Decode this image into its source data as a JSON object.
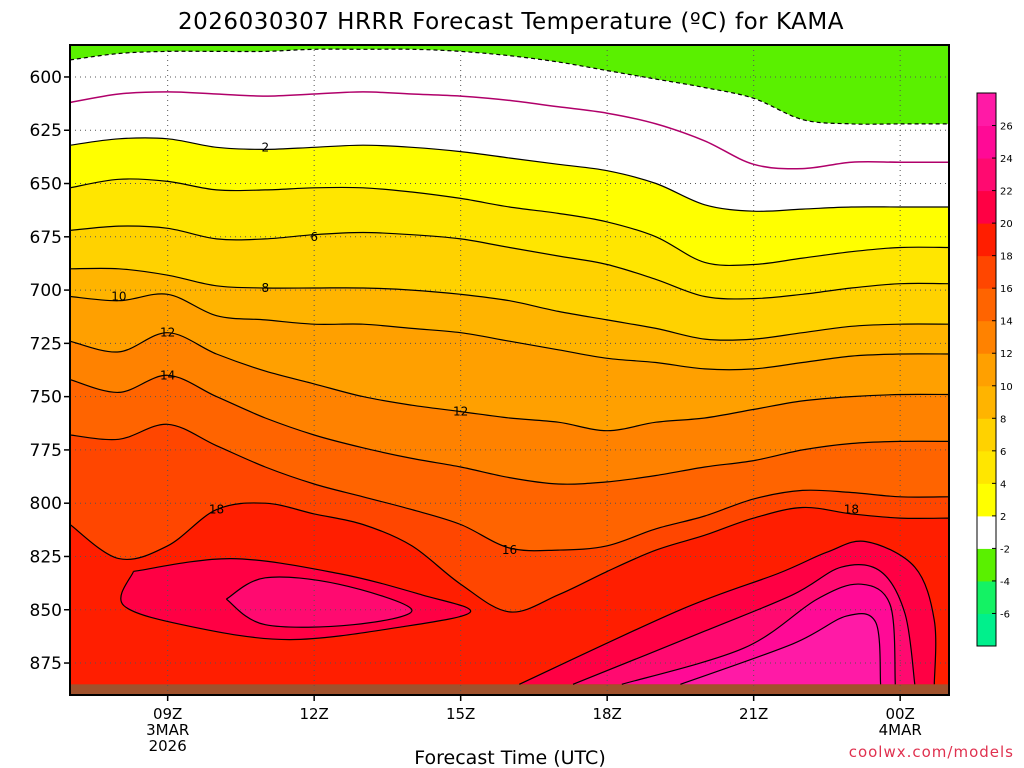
{
  "chart_data": {
    "type": "contour",
    "title": "2026030307 HRRR Forecast Temperature (ºC) for KAMA",
    "xlabel": "Forecast Time (UTC)",
    "ylabel": "",
    "credit": "coolwx.com/models",
    "ylim": [
      890,
      585
    ],
    "y_ticks": [
      600,
      625,
      650,
      675,
      700,
      725,
      750,
      775,
      800,
      825,
      850,
      875
    ],
    "x_range_hours": [
      7,
      25
    ],
    "x_ticks": [
      {
        "h": 9,
        "lines": [
          "09Z",
          "3MAR",
          "2026"
        ]
      },
      {
        "h": 12,
        "lines": [
          "12Z"
        ]
      },
      {
        "h": 15,
        "lines": [
          "15Z"
        ]
      },
      {
        "h": 18,
        "lines": [
          "18Z"
        ]
      },
      {
        "h": 21,
        "lines": [
          "21Z"
        ]
      },
      {
        "h": 24,
        "lines": [
          "00Z",
          "4MAR"
        ]
      }
    ],
    "x_hours": [
      7,
      8,
      9,
      10,
      11,
      12,
      13,
      14,
      15,
      16,
      17,
      18,
      19,
      20,
      21,
      22,
      23,
      24,
      25
    ],
    "ground_pressure_mb": 885,
    "isotherms": [
      {
        "t": -2,
        "color": "#000000",
        "dashed": true,
        "p": [
          592,
          589,
          588,
          588,
          588,
          587,
          587,
          587,
          588,
          590,
          593,
          597,
          601,
          605,
          610,
          620,
          622,
          622,
          622
        ]
      },
      {
        "t": 0,
        "color": "#b0006a",
        "dashed": false,
        "p": [
          612,
          608,
          607,
          608,
          609,
          608,
          607,
          608,
          609,
          611,
          614,
          617,
          622,
          630,
          641,
          643,
          640,
          640,
          640
        ]
      },
      {
        "t": 2,
        "color": "#000000",
        "dashed": false,
        "p": [
          632,
          629,
          629,
          633,
          634,
          633,
          632,
          633,
          635,
          638,
          641,
          644,
          650,
          660,
          663,
          662,
          661,
          661,
          661
        ]
      },
      {
        "t": 4,
        "color": "#000000",
        "dashed": false,
        "p": [
          652,
          648,
          649,
          653,
          653,
          652,
          652,
          654,
          657,
          661,
          664,
          668,
          675,
          687,
          688,
          685,
          682,
          680,
          680
        ]
      },
      {
        "t": 6,
        "color": "#000000",
        "dashed": false,
        "p": [
          672,
          670,
          671,
          676,
          676,
          674,
          673,
          674,
          676,
          680,
          684,
          688,
          695,
          703,
          704,
          702,
          699,
          697,
          697
        ]
      },
      {
        "t": 8,
        "color": "#000000",
        "dashed": false,
        "p": [
          690,
          690,
          693,
          698,
          699,
          699,
          699,
          700,
          702,
          705,
          710,
          714,
          718,
          723,
          723,
          720,
          717,
          716,
          716
        ]
      },
      {
        "t": 10,
        "color": "#000000",
        "dashed": false,
        "p": [
          703,
          705,
          702,
          712,
          714,
          716,
          716,
          718,
          720,
          724,
          728,
          732,
          734,
          737,
          737,
          734,
          731,
          730,
          730
        ]
      },
      {
        "t": 12,
        "color": "#000000",
        "dashed": false,
        "p": [
          724,
          729,
          720,
          730,
          738,
          744,
          750,
          754,
          757,
          760,
          762,
          766,
          762,
          760,
          756,
          752,
          750,
          749,
          749
        ]
      },
      {
        "t": 14,
        "color": "#000000",
        "dashed": false,
        "p": [
          742,
          748,
          740,
          750,
          760,
          768,
          774,
          779,
          783,
          788,
          791,
          790,
          787,
          783,
          780,
          775,
          772,
          771,
          771
        ]
      },
      {
        "t": 16,
        "color": "#000000",
        "dashed": false,
        "p": [
          768,
          770,
          763,
          773,
          783,
          791,
          797,
          803,
          810,
          821,
          822,
          820,
          812,
          806,
          798,
          794,
          795,
          797,
          797
        ]
      },
      {
        "t": 18,
        "color": "#000000",
        "dashed": false,
        "p": [
          810,
          826,
          820,
          803,
          800,
          805,
          810,
          820,
          838,
          851,
          843,
          832,
          822,
          815,
          807,
          802,
          805,
          807,
          807
        ]
      }
    ],
    "warm_pockets": [
      {
        "t": 20,
        "kind": "closed",
        "points": [
          [
            8.3,
            832
          ],
          [
            10.3,
            826
          ],
          [
            12.5,
            833
          ],
          [
            14.2,
            843
          ],
          [
            15.2,
            851
          ],
          [
            13.8,
            858
          ],
          [
            11.5,
            864
          ],
          [
            9.5,
            858
          ],
          [
            8.1,
            848
          ],
          [
            8.3,
            832
          ]
        ]
      },
      {
        "t": 22,
        "kind": "closed",
        "points": [
          [
            10.2,
            845
          ],
          [
            11.0,
            835
          ],
          [
            12.5,
            838
          ],
          [
            14.0,
            850
          ],
          [
            12.8,
            857
          ],
          [
            11.0,
            857
          ],
          [
            10.2,
            845
          ]
        ]
      },
      {
        "t": 20,
        "kind": "ground",
        "points": [
          [
            16.2,
            885
          ],
          [
            19.5,
            850
          ],
          [
            21.5,
            833
          ],
          [
            22.5,
            823
          ],
          [
            23.3,
            818
          ],
          [
            24.3,
            830
          ],
          [
            24.7,
            855
          ],
          [
            24.7,
            885
          ]
        ]
      },
      {
        "t": 22,
        "kind": "ground",
        "points": [
          [
            17.3,
            885
          ],
          [
            20.0,
            860
          ],
          [
            21.8,
            843
          ],
          [
            22.8,
            830
          ],
          [
            23.6,
            832
          ],
          [
            24.1,
            852
          ],
          [
            24.3,
            885
          ]
        ]
      },
      {
        "t": 24,
        "kind": "ground",
        "points": [
          [
            18.3,
            885
          ],
          [
            20.8,
            868
          ],
          [
            22.3,
            845
          ],
          [
            23.2,
            838
          ],
          [
            23.8,
            848
          ],
          [
            23.9,
            885
          ]
        ]
      },
      {
        "t": 26,
        "kind": "ground",
        "points": [
          [
            19.5,
            885
          ],
          [
            21.8,
            866
          ],
          [
            22.9,
            853
          ],
          [
            23.5,
            856
          ],
          [
            23.6,
            885
          ]
        ]
      }
    ],
    "contour_labels": [
      {
        "t": 2,
        "h": 11.0,
        "p": 633
      },
      {
        "t": 6,
        "h": 12.0,
        "p": 675
      },
      {
        "t": 8,
        "h": 11.0,
        "p": 699
      },
      {
        "t": 10,
        "h": 8.0,
        "p": 703
      },
      {
        "t": 12,
        "h": 9.0,
        "p": 720
      },
      {
        "t": 14,
        "h": 9.0,
        "p": 740
      },
      {
        "t": 12,
        "h": 15.0,
        "p": 757
      },
      {
        "t": 18,
        "h": 10.0,
        "p": 803
      },
      {
        "t": 16,
        "h": 16.0,
        "p": 822
      },
      {
        "t": 18,
        "h": 23.0,
        "p": 803
      }
    ],
    "colorbar": {
      "levels": [
        -6,
        -4,
        -2,
        2,
        4,
        6,
        8,
        10,
        12,
        14,
        16,
        18,
        20,
        22,
        24,
        26
      ],
      "bands": [
        {
          "t": -8,
          "color": "#00f08c"
        },
        {
          "t": -6,
          "color": "#14f264"
        },
        {
          "t": -4,
          "color": "#5af000"
        },
        {
          "t": -2,
          "color": "#ffffff"
        },
        {
          "t": 2,
          "color": "#ffff00"
        },
        {
          "t": 4,
          "color": "#ffe600"
        },
        {
          "t": 6,
          "color": "#ffd200"
        },
        {
          "t": 8,
          "color": "#ffb400"
        },
        {
          "t": 10,
          "color": "#ffa000"
        },
        {
          "t": 12,
          "color": "#ff8200"
        },
        {
          "t": 14,
          "color": "#ff6400"
        },
        {
          "t": 16,
          "color": "#ff4600"
        },
        {
          "t": 18,
          "color": "#ff1e00"
        },
        {
          "t": 20,
          "color": "#ff0044"
        },
        {
          "t": 22,
          "color": "#ff0a70"
        },
        {
          "t": 24,
          "color": "#ff0a96"
        },
        {
          "t": 26,
          "color": "#ff1aa6"
        }
      ]
    },
    "fills": {
      "above_m2": "#5af000",
      "m2_0": "#ffffff",
      "0_2": "#ffffff",
      "2_4": "#ffff00",
      "4_6": "#ffe600",
      "6_8": "#ffd200",
      "8_10": "#ffb400",
      "10_12": "#ffa000",
      "12_14": "#ff8200",
      "14_16": "#ff6400",
      "16_18": "#ff4600",
      "18_20": "#ff1e00",
      "20_22": "#ff0044",
      "22_24": "#ff0a70",
      "24_26": "#ff0a96",
      "26_28": "#ff1aa6",
      "ground": "#a0522d"
    }
  }
}
